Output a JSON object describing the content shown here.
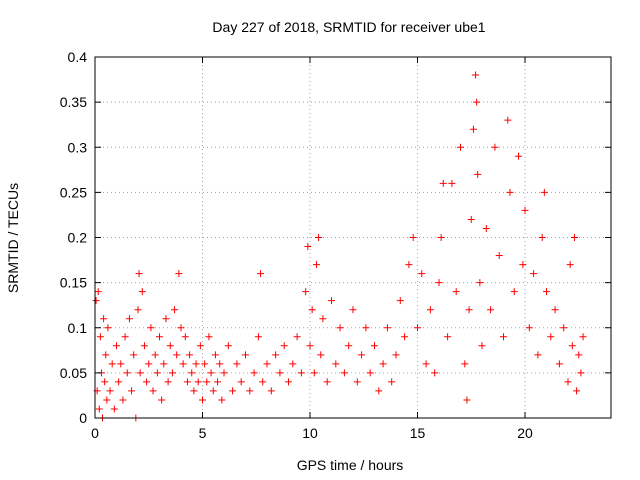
{
  "chart_data": {
    "type": "scatter",
    "title": "Day 227 of 2018, SRMTID for receiver ube1",
    "xlabel": "GPS time / hours",
    "ylabel": "SRMTID / TECUs",
    "xlim": [
      0,
      24
    ],
    "ylim": [
      0,
      0.4
    ],
    "grid": true,
    "marker": "plus",
    "color": "#ff0000",
    "x_ticks": [
      {
        "value": 0,
        "label": "0"
      },
      {
        "value": 5,
        "label": "5"
      },
      {
        "value": 10,
        "label": "10"
      },
      {
        "value": 15,
        "label": "15"
      },
      {
        "value": 20,
        "label": "20"
      }
    ],
    "y_ticks": [
      {
        "value": 0,
        "label": "0"
      },
      {
        "value": 0.05,
        "label": "0.05"
      },
      {
        "value": 0.1,
        "label": "0.1"
      },
      {
        "value": 0.15,
        "label": "0.15"
      },
      {
        "value": 0.2,
        "label": "0.2"
      },
      {
        "value": 0.25,
        "label": "0.25"
      },
      {
        "value": 0.3,
        "label": "0.3"
      },
      {
        "value": 0.35,
        "label": "0.35"
      },
      {
        "value": 0.4,
        "label": "0.4"
      }
    ],
    "series": [
      {
        "name": "SRMTID",
        "points": [
          [
            0.05,
            0.13
          ],
          [
            0.1,
            0.03
          ],
          [
            0.15,
            0.14
          ],
          [
            0.2,
            0.01
          ],
          [
            0.25,
            0.09
          ],
          [
            0.3,
            0.05
          ],
          [
            0.35,
            0.0
          ],
          [
            0.4,
            0.11
          ],
          [
            0.45,
            0.04
          ],
          [
            0.5,
            0.07
          ],
          [
            0.55,
            0.02
          ],
          [
            0.6,
            0.1
          ],
          [
            0.7,
            0.03
          ],
          [
            0.8,
            0.06
          ],
          [
            0.9,
            0.01
          ],
          [
            1.0,
            0.08
          ],
          [
            1.1,
            0.04
          ],
          [
            1.2,
            0.06
          ],
          [
            1.3,
            0.02
          ],
          [
            1.4,
            0.09
          ],
          [
            1.5,
            0.05
          ],
          [
            1.6,
            0.11
          ],
          [
            1.7,
            0.03
          ],
          [
            1.8,
            0.07
          ],
          [
            1.9,
            0.0
          ],
          [
            2.0,
            0.12
          ],
          [
            2.05,
            0.16
          ],
          [
            2.1,
            0.05
          ],
          [
            2.2,
            0.14
          ],
          [
            2.3,
            0.08
          ],
          [
            2.4,
            0.04
          ],
          [
            2.5,
            0.06
          ],
          [
            2.6,
            0.1
          ],
          [
            2.7,
            0.03
          ],
          [
            2.8,
            0.07
          ],
          [
            2.9,
            0.05
          ],
          [
            3.0,
            0.09
          ],
          [
            3.1,
            0.02
          ],
          [
            3.2,
            0.06
          ],
          [
            3.3,
            0.11
          ],
          [
            3.4,
            0.04
          ],
          [
            3.5,
            0.08
          ],
          [
            3.6,
            0.05
          ],
          [
            3.7,
            0.12
          ],
          [
            3.8,
            0.07
          ],
          [
            3.9,
            0.16
          ],
          [
            4.0,
            0.1
          ],
          [
            4.1,
            0.06
          ],
          [
            4.2,
            0.09
          ],
          [
            4.3,
            0.04
          ],
          [
            4.4,
            0.07
          ],
          [
            4.5,
            0.05
          ],
          [
            4.6,
            0.03
          ],
          [
            4.7,
            0.06
          ],
          [
            4.8,
            0.04
          ],
          [
            4.9,
            0.08
          ],
          [
            5.0,
            0.02
          ],
          [
            5.1,
            0.06
          ],
          [
            5.2,
            0.04
          ],
          [
            5.3,
            0.09
          ],
          [
            5.4,
            0.05
          ],
          [
            5.5,
            0.03
          ],
          [
            5.6,
            0.07
          ],
          [
            5.7,
            0.04
          ],
          [
            5.8,
            0.06
          ],
          [
            5.9,
            0.02
          ],
          [
            6.0,
            0.05
          ],
          [
            6.2,
            0.08
          ],
          [
            6.4,
            0.03
          ],
          [
            6.6,
            0.06
          ],
          [
            6.8,
            0.04
          ],
          [
            7.0,
            0.07
          ],
          [
            7.2,
            0.03
          ],
          [
            7.4,
            0.05
          ],
          [
            7.6,
            0.09
          ],
          [
            7.7,
            0.16
          ],
          [
            7.8,
            0.04
          ],
          [
            8.0,
            0.06
          ],
          [
            8.2,
            0.03
          ],
          [
            8.4,
            0.07
          ],
          [
            8.6,
            0.05
          ],
          [
            8.8,
            0.08
          ],
          [
            9.0,
            0.04
          ],
          [
            9.2,
            0.06
          ],
          [
            9.4,
            0.09
          ],
          [
            9.6,
            0.05
          ],
          [
            9.8,
            0.14
          ],
          [
            9.9,
            0.19
          ],
          [
            10.0,
            0.08
          ],
          [
            10.1,
            0.12
          ],
          [
            10.2,
            0.05
          ],
          [
            10.3,
            0.17
          ],
          [
            10.4,
            0.2
          ],
          [
            10.5,
            0.07
          ],
          [
            10.6,
            0.11
          ],
          [
            10.8,
            0.04
          ],
          [
            11.0,
            0.13
          ],
          [
            11.2,
            0.06
          ],
          [
            11.4,
            0.1
          ],
          [
            11.6,
            0.05
          ],
          [
            11.8,
            0.08
          ],
          [
            12.0,
            0.12
          ],
          [
            12.2,
            0.04
          ],
          [
            12.4,
            0.07
          ],
          [
            12.6,
            0.1
          ],
          [
            12.8,
            0.05
          ],
          [
            13.0,
            0.08
          ],
          [
            13.2,
            0.03
          ],
          [
            13.4,
            0.06
          ],
          [
            13.6,
            0.1
          ],
          [
            13.8,
            0.04
          ],
          [
            14.0,
            0.07
          ],
          [
            14.2,
            0.13
          ],
          [
            14.4,
            0.09
          ],
          [
            14.6,
            0.17
          ],
          [
            14.8,
            0.2
          ],
          [
            15.0,
            0.1
          ],
          [
            15.2,
            0.16
          ],
          [
            15.4,
            0.06
          ],
          [
            15.6,
            0.12
          ],
          [
            15.8,
            0.05
          ],
          [
            16.0,
            0.15
          ],
          [
            16.1,
            0.2
          ],
          [
            16.2,
            0.26
          ],
          [
            16.4,
            0.09
          ],
          [
            16.6,
            0.26
          ],
          [
            16.8,
            0.14
          ],
          [
            17.0,
            0.3
          ],
          [
            17.2,
            0.06
          ],
          [
            17.3,
            0.02
          ],
          [
            17.4,
            0.12
          ],
          [
            17.5,
            0.22
          ],
          [
            17.6,
            0.32
          ],
          [
            17.7,
            0.38
          ],
          [
            17.75,
            0.35
          ],
          [
            17.8,
            0.27
          ],
          [
            17.9,
            0.15
          ],
          [
            18.0,
            0.08
          ],
          [
            18.2,
            0.21
          ],
          [
            18.4,
            0.12
          ],
          [
            18.6,
            0.3
          ],
          [
            18.8,
            0.18
          ],
          [
            19.0,
            0.09
          ],
          [
            19.2,
            0.33
          ],
          [
            19.3,
            0.25
          ],
          [
            19.5,
            0.14
          ],
          [
            19.7,
            0.29
          ],
          [
            19.9,
            0.17
          ],
          [
            20.0,
            0.23
          ],
          [
            20.2,
            0.1
          ],
          [
            20.4,
            0.16
          ],
          [
            20.6,
            0.07
          ],
          [
            20.8,
            0.2
          ],
          [
            20.9,
            0.25
          ],
          [
            21.0,
            0.14
          ],
          [
            21.2,
            0.09
          ],
          [
            21.4,
            0.12
          ],
          [
            21.6,
            0.06
          ],
          [
            21.8,
            0.1
          ],
          [
            22.0,
            0.04
          ],
          [
            22.1,
            0.17
          ],
          [
            22.2,
            0.08
          ],
          [
            22.3,
            0.2
          ],
          [
            22.4,
            0.03
          ],
          [
            22.5,
            0.07
          ],
          [
            22.6,
            0.05
          ],
          [
            22.7,
            0.09
          ]
        ]
      }
    ]
  }
}
